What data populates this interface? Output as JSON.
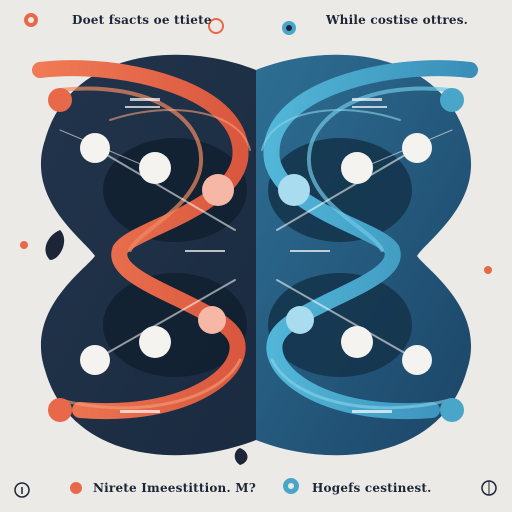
{
  "captions": {
    "top_left": "Doet fsacts oe ttiete",
    "top_right": "While costise ottres.",
    "bottom_left": "Nirete Imeestittion. M?",
    "bottom_right": "Hogefs cestinest."
  },
  "palette": {
    "background": "#ebeae6",
    "navy": "#1f3550",
    "deep_blue": "#17314a",
    "coral": "#e8694a",
    "teal": "#4aa6c9",
    "white": "#f4f3ef"
  },
  "icons": [
    "coral-dot-icon",
    "teal-dot-icon",
    "coral-splash-icon",
    "ink-drop-icon",
    "peace-sign-icon",
    "info-circle-icon"
  ]
}
